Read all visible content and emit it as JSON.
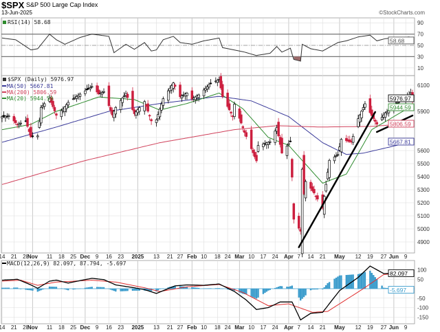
{
  "header": {
    "symbol": "$SPX",
    "name": "S&P 500 Large Cap Index",
    "date": "13-Jun-2025",
    "watermark": "©StockCharts.com"
  },
  "colors": {
    "up": "#000000",
    "down": "#cc1f3f",
    "ma50": "#3a3a9a",
    "ma200": "#d0405a",
    "ma20": "#2e8b2e",
    "rsi": "#333333",
    "macd": "#000000",
    "signal": "#e03030",
    "hist": "#3b9ccc",
    "grid": "#dddddd"
  },
  "chart_data": [
    {
      "type": "line",
      "panel": "rsi",
      "title": "RSI(14) 58.68",
      "label": "RSI(14)",
      "last_value": "58.68",
      "ylim": [
        0,
        100
      ],
      "ticks": [
        "90",
        "70",
        "50",
        "30",
        "10"
      ],
      "tick_values": [
        90,
        70,
        50,
        30,
        10
      ],
      "bands": [
        70,
        50,
        30
      ],
      "series": {
        "dates": [
          "2024-10-14",
          "2024-10-22",
          "2024-10-31",
          "2024-11-04",
          "2024-11-11",
          "2024-11-15",
          "2024-11-20",
          "2024-11-29",
          "2024-12-06",
          "2024-12-16",
          "2024-12-19",
          "2024-12-26",
          "2024-12-31",
          "2025-01-06",
          "2025-01-10",
          "2025-01-13",
          "2025-01-17",
          "2025-01-23",
          "2025-01-27",
          "2025-02-03",
          "2025-02-10",
          "2025-02-19",
          "2025-02-21",
          "2025-03-06",
          "2025-03-13",
          "2025-03-21",
          "2025-03-25",
          "2025-03-28",
          "2025-04-02",
          "2025-04-04",
          "2025-04-08",
          "2025-04-09",
          "2025-04-14",
          "2025-04-21",
          "2025-04-30",
          "2025-05-05",
          "2025-05-12",
          "2025-05-19",
          "2025-05-23",
          "2025-05-28",
          "2025-06-06",
          "2025-06-11",
          "2025-06-13"
        ],
        "values": [
          63,
          60,
          42,
          44,
          70,
          60,
          52,
          64,
          70,
          66,
          37,
          52,
          43,
          55,
          40,
          42,
          60,
          66,
          55,
          52,
          58,
          63,
          46,
          38,
          32,
          36,
          48,
          38,
          45,
          25,
          22,
          52,
          44,
          40,
          55,
          58,
          65,
          68,
          58,
          62,
          64,
          65,
          58.68
        ]
      }
    },
    {
      "type": "candlestick",
      "panel": "price",
      "title": "$SPX (Daily) 5976.97",
      "label": "$SPX (Daily)",
      "last_value": "5976.97",
      "ylim": [
        4820,
        6160
      ],
      "ticks": [
        "6100",
        "6000",
        "5900",
        "5800",
        "5700",
        "5600",
        "5500",
        "5400",
        "5300",
        "5200",
        "5100",
        "5000",
        "4900"
      ],
      "tick_values": [
        6100,
        6000,
        5900,
        5800,
        5700,
        5600,
        5500,
        5400,
        5300,
        5200,
        5100,
        5000,
        4900
      ],
      "close": {
        "dates": [
          "2024-10-14",
          "2024-10-18",
          "2024-10-23",
          "2024-10-28",
          "2024-10-31",
          "2024-11-04",
          "2024-11-06",
          "2024-11-11",
          "2024-11-15",
          "2024-11-19",
          "2024-11-22",
          "2024-11-29",
          "2024-12-06",
          "2024-12-10",
          "2024-12-13",
          "2024-12-18",
          "2024-12-20",
          "2024-12-26",
          "2024-12-31",
          "2025-01-06",
          "2025-01-10",
          "2025-01-13",
          "2025-01-17",
          "2025-01-23",
          "2025-01-27",
          "2025-01-31",
          "2025-02-03",
          "2025-02-07",
          "2025-02-14",
          "2025-02-19",
          "2025-02-21",
          "2025-02-27",
          "2025-02-28",
          "2025-03-06",
          "2025-03-10",
          "2025-03-13",
          "2025-03-14",
          "2025-03-21",
          "2025-03-25",
          "2025-03-28",
          "2025-04-02",
          "2025-04-03",
          "2025-04-04",
          "2025-04-08",
          "2025-04-09",
          "2025-04-10",
          "2025-04-11",
          "2025-04-16",
          "2025-04-21",
          "2025-04-25",
          "2025-04-30",
          "2025-05-02",
          "2025-05-08",
          "2025-05-12",
          "2025-05-16",
          "2025-05-21",
          "2025-05-23",
          "2025-05-28",
          "2025-06-02",
          "2025-06-06",
          "2025-06-11",
          "2025-06-12",
          "2025-06-13"
        ],
        "values": [
          5860,
          5865,
          5800,
          5825,
          5705,
          5712,
          5930,
          6001,
          5870,
          5917,
          5969,
          6032,
          6090,
          6034,
          6051,
          5872,
          5930,
          6037,
          5882,
          5975,
          5827,
          5836,
          5997,
          6118,
          6012,
          6040,
          5994,
          6026,
          6114,
          6144,
          6013,
          5861,
          5955,
          5738,
          5614,
          5521,
          5639,
          5667,
          5777,
          5581,
          5671,
          5396,
          5074,
          4982,
          5457,
          5268,
          5363,
          5275,
          5158,
          5525,
          5569,
          5686,
          5664,
          5844,
          5958,
          5845,
          5802,
          5889,
          5936,
          6000,
          6022,
          6045,
          5976.97
        ]
      },
      "moving_averages": [
        {
          "name": "MA(50)",
          "label": "MA(50) 5667.81",
          "last_value": "5667.81",
          "color_key": "ma50",
          "dates": [
            "2024-10-14",
            "2024-11-15",
            "2024-12-16",
            "2025-01-15",
            "2025-02-19",
            "2025-03-10",
            "2025-04-01",
            "2025-04-21",
            "2025-05-05",
            "2025-05-15",
            "2025-06-13"
          ],
          "values": [
            5663,
            5780,
            5900,
            5960,
            6015,
            5980,
            5860,
            5660,
            5570,
            5580,
            5667.81
          ]
        },
        {
          "name": "MA(200)",
          "label": "MA(200) 5806.59",
          "last_value": "5806.59",
          "color_key": "ma200",
          "dates": [
            "2024-10-14",
            "2024-12-01",
            "2025-01-15",
            "2025-02-28",
            "2025-03-25",
            "2025-04-20",
            "2025-05-20",
            "2025-06-13"
          ],
          "values": [
            5340,
            5520,
            5660,
            5760,
            5790,
            5780,
            5785,
            5806.59
          ]
        },
        {
          "name": "MA(20)",
          "label": "MA(20) 5944.59",
          "last_value": "5944.59",
          "color_key": "ma20",
          "dates": [
            "2024-10-14",
            "2024-10-31",
            "2024-11-15",
            "2024-12-10",
            "2024-12-31",
            "2025-01-15",
            "2025-01-31",
            "2025-02-19",
            "2025-03-05",
            "2025-03-20",
            "2025-04-01",
            "2025-04-21",
            "2025-05-05",
            "2025-05-20",
            "2025-06-13"
          ],
          "values": [
            5760,
            5800,
            5900,
            6010,
            5990,
            5910,
            5960,
            6040,
            5920,
            5700,
            5640,
            5350,
            5420,
            5760,
            5944.59
          ]
        }
      ],
      "trendlines": [
        {
          "from": [
            "2025-04-07",
            4860
          ],
          "to": [
            "2025-05-22",
            5895
          ]
        },
        {
          "from": [
            "2025-05-23",
            5742
          ],
          "to": [
            "2025-06-13",
            5868
          ]
        }
      ]
    },
    {
      "type": "line",
      "panel": "macd",
      "title": "MACD(12,26,9) 82.097, 87.794, -5.697",
      "label": "MACD(12,26,9)",
      "macd_value": "82.097",
      "signal_value": "87.794",
      "hist_value": "-5.697",
      "ylim": [
        -190,
        140
      ],
      "ticks": [
        "100",
        "50",
        "-50",
        "-100",
        "-150"
      ],
      "tick_values": [
        100,
        50,
        -50,
        -100,
        -150
      ],
      "macd": {
        "dates": [
          "2024-10-14",
          "2024-10-23",
          "2024-10-31",
          "2024-11-04",
          "2024-11-11",
          "2024-11-15",
          "2024-11-22",
          "2024-12-06",
          "2024-12-13",
          "2024-12-20",
          "2024-12-31",
          "2025-01-06",
          "2025-01-13",
          "2025-01-24",
          "2025-01-31",
          "2025-02-10",
          "2025-02-19",
          "2025-02-28",
          "2025-03-07",
          "2025-03-13",
          "2025-03-20",
          "2025-03-27",
          "2025-04-03",
          "2025-04-08",
          "2025-04-14",
          "2025-04-21",
          "2025-05-01",
          "2025-05-12",
          "2025-05-19",
          "2025-05-27",
          "2025-06-13"
        ],
        "values": [
          45,
          50,
          20,
          2,
          40,
          45,
          30,
          55,
          48,
          20,
          5,
          -5,
          -25,
          15,
          20,
          18,
          25,
          -15,
          -60,
          -110,
          -100,
          -70,
          -70,
          -165,
          -130,
          -125,
          -10,
          60,
          120,
          80,
          82.097
        ]
      },
      "signal": {
        "dates": [
          "2024-10-14",
          "2024-10-25",
          "2024-11-04",
          "2024-11-15",
          "2024-12-06",
          "2024-12-20",
          "2025-01-06",
          "2025-01-15",
          "2025-01-31",
          "2025-02-19",
          "2025-03-05",
          "2025-03-20",
          "2025-04-01",
          "2025-04-15",
          "2025-04-24",
          "2025-05-15",
          "2025-05-27",
          "2025-06-13"
        ],
        "values": [
          40,
          45,
          18,
          35,
          45,
          35,
          5,
          -15,
          10,
          22,
          -20,
          -90,
          -80,
          -125,
          -120,
          0,
          75,
          87.794
        ]
      }
    }
  ],
  "x_axis": {
    "start": "2024-10-14",
    "end": "2025-06-13",
    "labels": [
      {
        "date": "2024-10-14",
        "text": "14"
      },
      {
        "date": "2024-10-21",
        "text": "21"
      },
      {
        "date": "2024-10-28",
        "text": "28"
      },
      {
        "date": "2024-11-01",
        "text": "Nov",
        "bold": true
      },
      {
        "date": "2024-11-11",
        "text": "11"
      },
      {
        "date": "2024-11-18",
        "text": "18"
      },
      {
        "date": "2024-11-25",
        "text": "25"
      },
      {
        "date": "2024-12-02",
        "text": "Dec",
        "bold": true
      },
      {
        "date": "2024-12-09",
        "text": "9"
      },
      {
        "date": "2024-12-16",
        "text": "16"
      },
      {
        "date": "2024-12-23",
        "text": "23"
      },
      {
        "date": "2025-01-02",
        "text": "2025",
        "bold": true
      },
      {
        "date": "2025-01-13",
        "text": "13"
      },
      {
        "date": "2025-01-21",
        "text": "21"
      },
      {
        "date": "2025-01-27",
        "text": "27"
      },
      {
        "date": "2025-02-03",
        "text": "Feb",
        "bold": true
      },
      {
        "date": "2025-02-10",
        "text": "10"
      },
      {
        "date": "2025-02-18",
        "text": "18"
      },
      {
        "date": "2025-02-24",
        "text": "24"
      },
      {
        "date": "2025-03-03",
        "text": "Mar",
        "bold": true
      },
      {
        "date": "2025-03-10",
        "text": "10"
      },
      {
        "date": "2025-03-17",
        "text": "17"
      },
      {
        "date": "2025-03-24",
        "text": "24"
      },
      {
        "date": "2025-04-01",
        "text": "Apr",
        "bold": true
      },
      {
        "date": "2025-04-07",
        "text": "7"
      },
      {
        "date": "2025-04-14",
        "text": "14"
      },
      {
        "date": "2025-04-21",
        "text": "21"
      },
      {
        "date": "2025-05-01",
        "text": "May",
        "bold": true
      },
      {
        "date": "2025-05-12",
        "text": "12"
      },
      {
        "date": "2025-05-19",
        "text": "19"
      },
      {
        "date": "2025-05-27",
        "text": "27"
      },
      {
        "date": "2025-06-02",
        "text": "Jun",
        "bold": true
      },
      {
        "date": "2025-06-09",
        "text": "9"
      }
    ]
  }
}
